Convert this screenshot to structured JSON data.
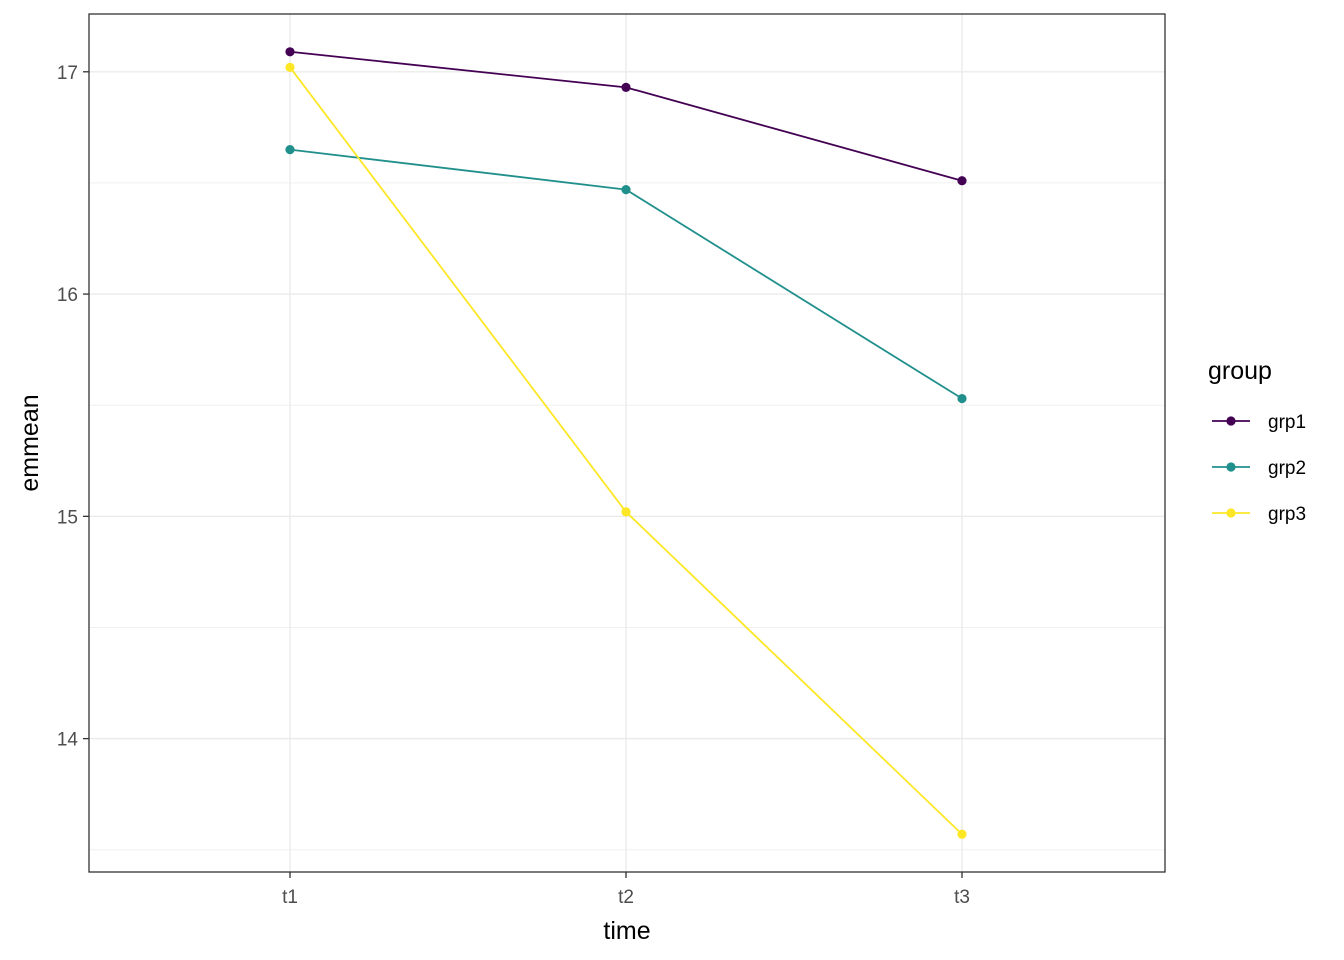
{
  "chart_data": {
    "type": "line",
    "title": "",
    "xlabel": "time",
    "ylabel": "emmean",
    "categories": [
      "t1",
      "t2",
      "t3"
    ],
    "y_ticks": [
      14,
      15,
      16,
      17
    ],
    "ylim": [
      13.4,
      17.26
    ],
    "grid": true,
    "legend": {
      "title": "group",
      "position": "right"
    },
    "series": [
      {
        "name": "grp1",
        "color": "#440154",
        "values": [
          17.09,
          16.93,
          16.51
        ]
      },
      {
        "name": "grp2",
        "color": "#21908C",
        "values": [
          16.65,
          16.47,
          15.53
        ]
      },
      {
        "name": "grp3",
        "color": "#FDE725",
        "values": [
          17.02,
          15.02,
          13.57
        ]
      }
    ]
  }
}
